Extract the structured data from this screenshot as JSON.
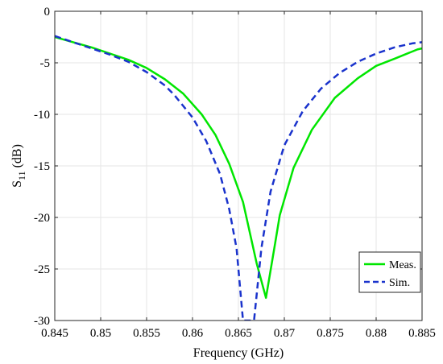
{
  "chart_data": {
    "type": "line",
    "xlabel": "Frequency (GHz)",
    "ylabel_main": "S",
    "ylabel_sub": "11",
    "ylabel_unit": " (dB)",
    "xlim": [
      0.845,
      0.885
    ],
    "ylim": [
      -30,
      0
    ],
    "xticks": [
      0.845,
      0.85,
      0.855,
      0.86,
      0.865,
      0.87,
      0.875,
      0.88,
      0.885
    ],
    "xtick_labels": [
      "0.845",
      "0.85",
      "0.855",
      "0.86",
      "0.865",
      "0.87",
      "0.875",
      "0.88",
      "0.885"
    ],
    "yticks": [
      0,
      -5,
      -10,
      -15,
      -20,
      -25,
      -30
    ],
    "ytick_labels": [
      "0",
      "-5",
      "-10",
      "-15",
      "-20",
      "-25",
      "-30"
    ],
    "grid": true,
    "legend_position": "bottom-right",
    "series": [
      {
        "name": "Meas.",
        "color": "#00e600",
        "style": "solid",
        "x": [
          0.845,
          0.847,
          0.849,
          0.851,
          0.853,
          0.855,
          0.857,
          0.859,
          0.861,
          0.8625,
          0.864,
          0.8655,
          0.867,
          0.868,
          0.869,
          0.8695,
          0.871,
          0.873,
          0.8755,
          0.878,
          0.88,
          0.882,
          0.8845,
          0.885
        ],
        "y": [
          -2.5,
          -3.0,
          -3.5,
          -4.1,
          -4.7,
          -5.5,
          -6.6,
          -8.0,
          -10.0,
          -12.0,
          -14.8,
          -18.5,
          -24.5,
          -27.8,
          -22.5,
          -19.8,
          -15.2,
          -11.5,
          -8.4,
          -6.5,
          -5.3,
          -4.6,
          -3.7,
          -3.6
        ]
      },
      {
        "name": "Sim.",
        "color": "#1a33cc",
        "style": "dashed",
        "x": [
          0.845,
          0.847,
          0.849,
          0.851,
          0.853,
          0.855,
          0.857,
          0.858,
          0.86,
          0.8615,
          0.863,
          0.864,
          0.8648,
          0.8655,
          0.8667,
          0.8675,
          0.8685,
          0.87,
          0.872,
          0.874,
          0.876,
          0.878,
          0.88,
          0.882,
          0.884,
          0.885
        ],
        "y": [
          -2.4,
          -3.0,
          -3.6,
          -4.2,
          -4.9,
          -5.9,
          -7.2,
          -8.1,
          -10.3,
          -12.6,
          -15.8,
          -19.2,
          -23.0,
          -30.0,
          -30.0,
          -23.0,
          -17.5,
          -13.0,
          -9.7,
          -7.5,
          -6.0,
          -4.9,
          -4.1,
          -3.5,
          -3.1,
          -3.0
        ]
      }
    ]
  }
}
